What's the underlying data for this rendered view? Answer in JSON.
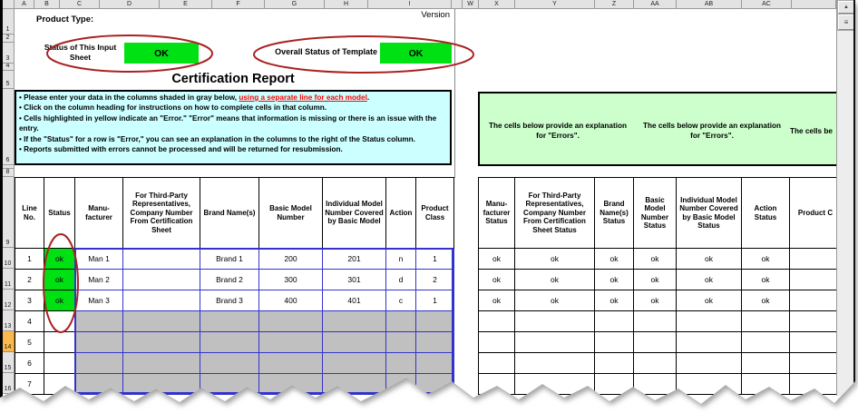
{
  "sheet": {
    "left_columns": [
      "A",
      "B",
      "C",
      "D",
      "E",
      "F",
      "G",
      "H",
      "I"
    ],
    "right_columns": [
      "W",
      "X",
      "Y",
      "Z",
      "AA",
      "AB",
      "AC",
      ""
    ],
    "rows": [
      "1",
      "2",
      "3",
      "4",
      "5",
      "6",
      "7",
      "8",
      "9",
      "10",
      "11",
      "12",
      "13",
      "14",
      "15",
      "16"
    ],
    "highlighted_row": "14"
  },
  "top": {
    "product_type_label": "Product Type:",
    "version_label": "Version",
    "input_sheet_status_label": "Status of This Input Sheet",
    "input_sheet_status_value": "OK",
    "overall_status_label": "Overall Status of Template",
    "overall_status_value": "OK"
  },
  "title": "Certification Report",
  "instructions": {
    "bullet_char": "•",
    "bullet1_pre": "Please enter your data in the columns shaded in gray below, ",
    "bullet1_link": "using a separate line for each model",
    "bullet1_post": ".",
    "bullets": [
      "Click on the column heading for instructions on how to complete cells in that column.",
      "Cells highlighted in yellow indicate an \"Error.\"  \"Error\" means that information is missing or there is an issue with the entry.",
      "If the \"Status\" for a row is \"Error,\" you can see an explanation in the columns to the right of the Status column.",
      "Reports submitted with errors cannot be processed and will be returned for resubmission."
    ]
  },
  "error_note": {
    "text1": "The cells below provide an explanation for \"Errors\".",
    "text2": "The cells below provide an explanation for \"Errors\".",
    "text3_partial": "The cells be"
  },
  "left_table": {
    "headers": [
      "Line No.",
      "Status",
      "Manu-facturer",
      "For Third-Party Representatives, Company Number From Certification Sheet",
      "Brand Name(s)",
      "Basic Model Number",
      "Individual Model Number Covered by Basic Model",
      "Action",
      "Product Class"
    ],
    "rows": [
      [
        "1",
        "ok",
        "Man 1",
        "",
        "Brand 1",
        "200",
        "201",
        "n",
        "1"
      ],
      [
        "2",
        "ok",
        "Man 2",
        "",
        "Brand 2",
        "300",
        "301",
        "d",
        "2"
      ],
      [
        "3",
        "ok",
        "Man 3",
        "",
        "Brand 3",
        "400",
        "401",
        "c",
        "1"
      ],
      [
        "4",
        "",
        "",
        "",
        "",
        "",
        "",
        "",
        ""
      ],
      [
        "5",
        "",
        "",
        "",
        "",
        "",
        "",
        "",
        ""
      ],
      [
        "6",
        "",
        "",
        "",
        "",
        "",
        "",
        "",
        ""
      ],
      [
        "7",
        "",
        "",
        "",
        "",
        "",
        "",
        "",
        ""
      ]
    ]
  },
  "right_table": {
    "headers": [
      "Manu-facturer Status",
      "For Third-Party Representatives, Company Number From Certification Sheet Status",
      "Brand Name(s) Status",
      "Basic Model Number Status",
      "Individual Model Number Covered by Basic Model Status",
      "Action Status",
      "Product C"
    ],
    "rows": [
      [
        "ok",
        "ok",
        "ok",
        "ok",
        "ok",
        "ok",
        ""
      ],
      [
        "ok",
        "ok",
        "ok",
        "ok",
        "ok",
        "ok",
        ""
      ],
      [
        "ok",
        "ok",
        "ok",
        "ok",
        "ok",
        "ok",
        ""
      ],
      [
        "",
        "",
        "",
        "",
        "",
        "",
        ""
      ],
      [
        "",
        "",
        "",
        "",
        "",
        "",
        ""
      ],
      [
        "",
        "",
        "",
        "",
        "",
        "",
        ""
      ],
      [
        "",
        "",
        "",
        "",
        "",
        "",
        ""
      ]
    ]
  },
  "icons": {
    "scroll_up": "▲",
    "thumb_grip": "≡"
  },
  "colors": {
    "ok_green": "#00E113",
    "instructions_bg": "#CCFFFF",
    "note_bg": "#CCFFCC",
    "disabled_gray": "#C0C0C0",
    "grid_blue": "#3333CC",
    "circle_red": "#AA2222",
    "highlight_orange": "#FBB84C",
    "link_red": "#FF0000"
  }
}
